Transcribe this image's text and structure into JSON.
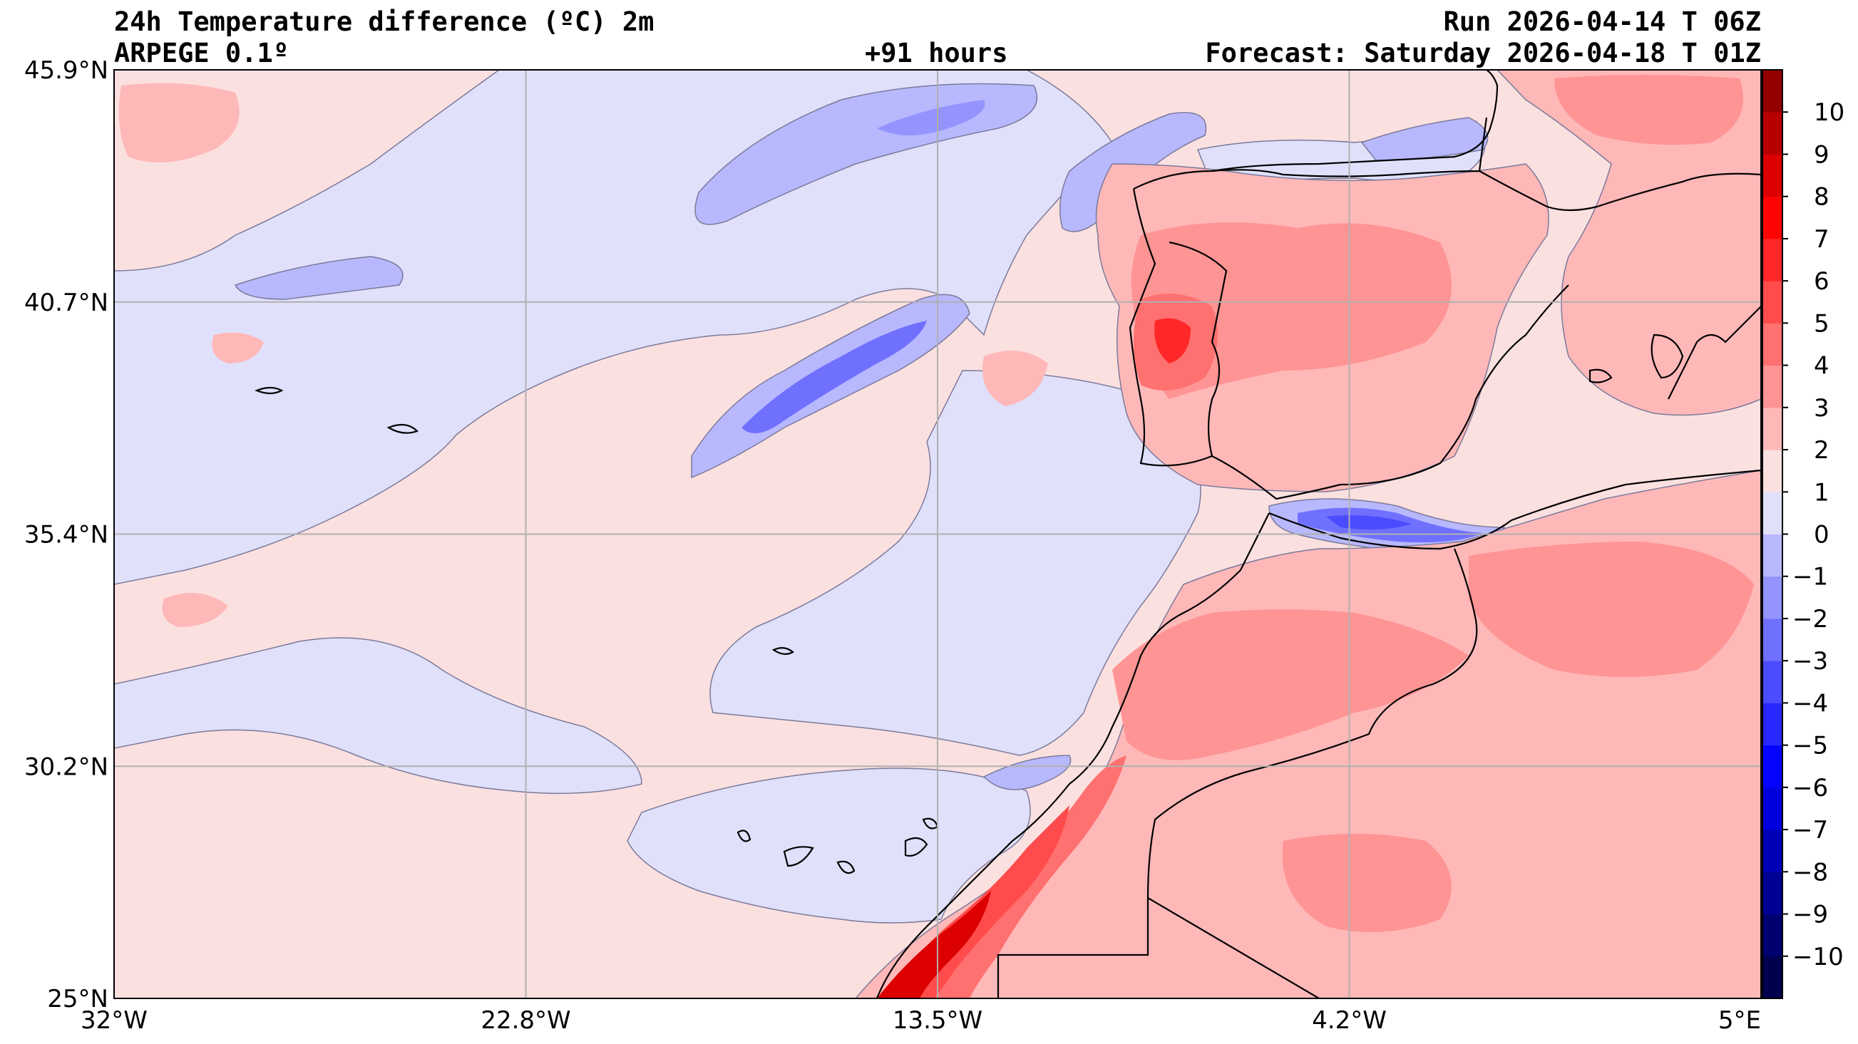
{
  "header": {
    "title": "24h Temperature difference (ºC) 2m",
    "model": "ARPEGE 0.1º",
    "lead": "+91 hours",
    "run": "Run 2026-04-14 T 06Z",
    "forecast": "Forecast: Saturday 2026-04-18 T 01Z"
  },
  "axes": {
    "lat_labels": [
      "45.9°N",
      "40.7°N",
      "35.4°N",
      "30.2°N",
      "25°N"
    ],
    "lon_labels": [
      "32°W",
      "22.8°W",
      "13.5°W",
      "4.2°W",
      "5°E"
    ],
    "lat_range": [
      25.0,
      45.9
    ],
    "lon_range": [
      -32.0,
      5.0
    ],
    "grid": true
  },
  "colorbar": {
    "levels": [
      -11,
      -10,
      -9,
      -8,
      -7,
      -6,
      -5,
      -4,
      -3,
      -2,
      -1,
      0,
      1,
      2,
      3,
      4,
      5,
      6,
      7,
      8,
      9,
      10,
      11
    ],
    "colors": [
      "#00004c",
      "#000070",
      "#000094",
      "#0000b8",
      "#0000dc",
      "#0303ff",
      "#2727ff",
      "#4b4bff",
      "#7070ff",
      "#9494ff",
      "#b8b8ff",
      "#e0e0fb",
      "#fbe0e0",
      "#ffb8b8",
      "#ff9494",
      "#ff7070",
      "#ff4b4b",
      "#ff2727",
      "#ff0303",
      "#dc0000",
      "#b80000",
      "#940000",
      "#700000"
    ],
    "labels": [
      "10",
      "9",
      "8",
      "7",
      "6",
      "5",
      "4",
      "3",
      "2",
      "1",
      "0",
      "−1",
      "−2",
      "−3",
      "−4",
      "−5",
      "−6",
      "−7",
      "−8",
      "−9",
      "−10"
    ],
    "label_values": [
      10,
      9,
      8,
      7,
      6,
      5,
      4,
      3,
      2,
      1,
      0,
      -1,
      -2,
      -3,
      -4,
      -5,
      -6,
      -7,
      -8,
      -9,
      -10
    ]
  },
  "map_features": {
    "field": "2m temperature difference over 24h",
    "cooling_region": "blue bands over the Atlantic and along the Alboran Sea",
    "warming_region": "red over Iberia, Morocco and north-west Africa, strongest along the Saharan coast"
  }
}
